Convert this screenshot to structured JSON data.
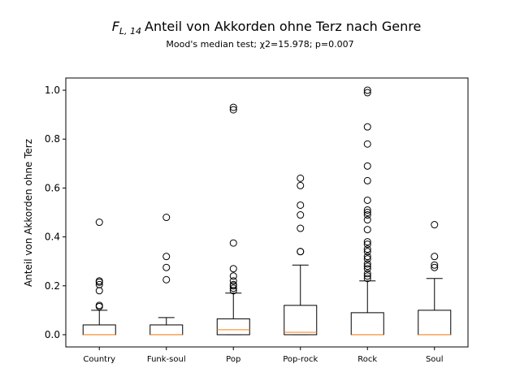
{
  "chart_data": {
    "type": "box",
    "title": {
      "prefix_math": "F",
      "subscript": "L, 14",
      "text": "Anteil von Akkorden ohne Terz nach Genre"
    },
    "subtitle": "Mood's median test; χ2=15.978; p=0.007",
    "xlabel": "",
    "ylabel": "Anteil von Akkorden ohne Terz",
    "ylim": [
      -0.05,
      1.05
    ],
    "yticks": [
      "0.0",
      "0.2",
      "0.4",
      "0.6",
      "0.8",
      "1.0"
    ],
    "grid": false,
    "colors": {
      "box": "#000000",
      "median": "#ff7f0e",
      "flier": "#000000"
    },
    "categories": [
      "Country",
      "Funk-soul",
      "Pop",
      "Pop-rock",
      "Rock",
      "Soul"
    ],
    "boxes": [
      {
        "name": "Country",
        "whisker_low": 0.0,
        "q1": 0.0,
        "median": 0.0,
        "q3": 0.04,
        "whisker_high": 0.1,
        "fliers": [
          0.12,
          0.115,
          0.18,
          0.205,
          0.215,
          0.22,
          0.46
        ]
      },
      {
        "name": "Funk-soul",
        "whisker_low": 0.0,
        "q1": 0.0,
        "median": 0.0,
        "q3": 0.04,
        "whisker_high": 0.07,
        "fliers": [
          0.225,
          0.275,
          0.32,
          0.48
        ]
      },
      {
        "name": "Pop",
        "whisker_low": 0.0,
        "q1": 0.0,
        "median": 0.02,
        "q3": 0.065,
        "whisker_high": 0.17,
        "fliers": [
          0.18,
          0.19,
          0.2,
          0.205,
          0.22,
          0.24,
          0.27,
          0.375,
          0.92,
          0.93
        ]
      },
      {
        "name": "Pop-rock",
        "whisker_low": 0.0,
        "q1": 0.0,
        "median": 0.01,
        "q3": 0.12,
        "whisker_high": 0.285,
        "fliers": [
          0.34,
          0.34,
          0.435,
          0.49,
          0.53,
          0.61,
          0.64
        ]
      },
      {
        "name": "Rock",
        "whisker_low": 0.0,
        "q1": 0.0,
        "median": 0.0,
        "q3": 0.09,
        "whisker_high": 0.22,
        "fliers": [
          0.23,
          0.24,
          0.25,
          0.27,
          0.28,
          0.29,
          0.31,
          0.32,
          0.34,
          0.35,
          0.37,
          0.38,
          0.43,
          0.47,
          0.49,
          0.5,
          0.51,
          0.55,
          0.63,
          0.69,
          0.78,
          0.85,
          0.99,
          1.0
        ]
      },
      {
        "name": "Soul",
        "whisker_low": 0.0,
        "q1": 0.0,
        "median": 0.0,
        "q3": 0.1,
        "whisker_high": 0.23,
        "fliers": [
          0.275,
          0.285,
          0.32,
          0.45
        ]
      }
    ]
  }
}
